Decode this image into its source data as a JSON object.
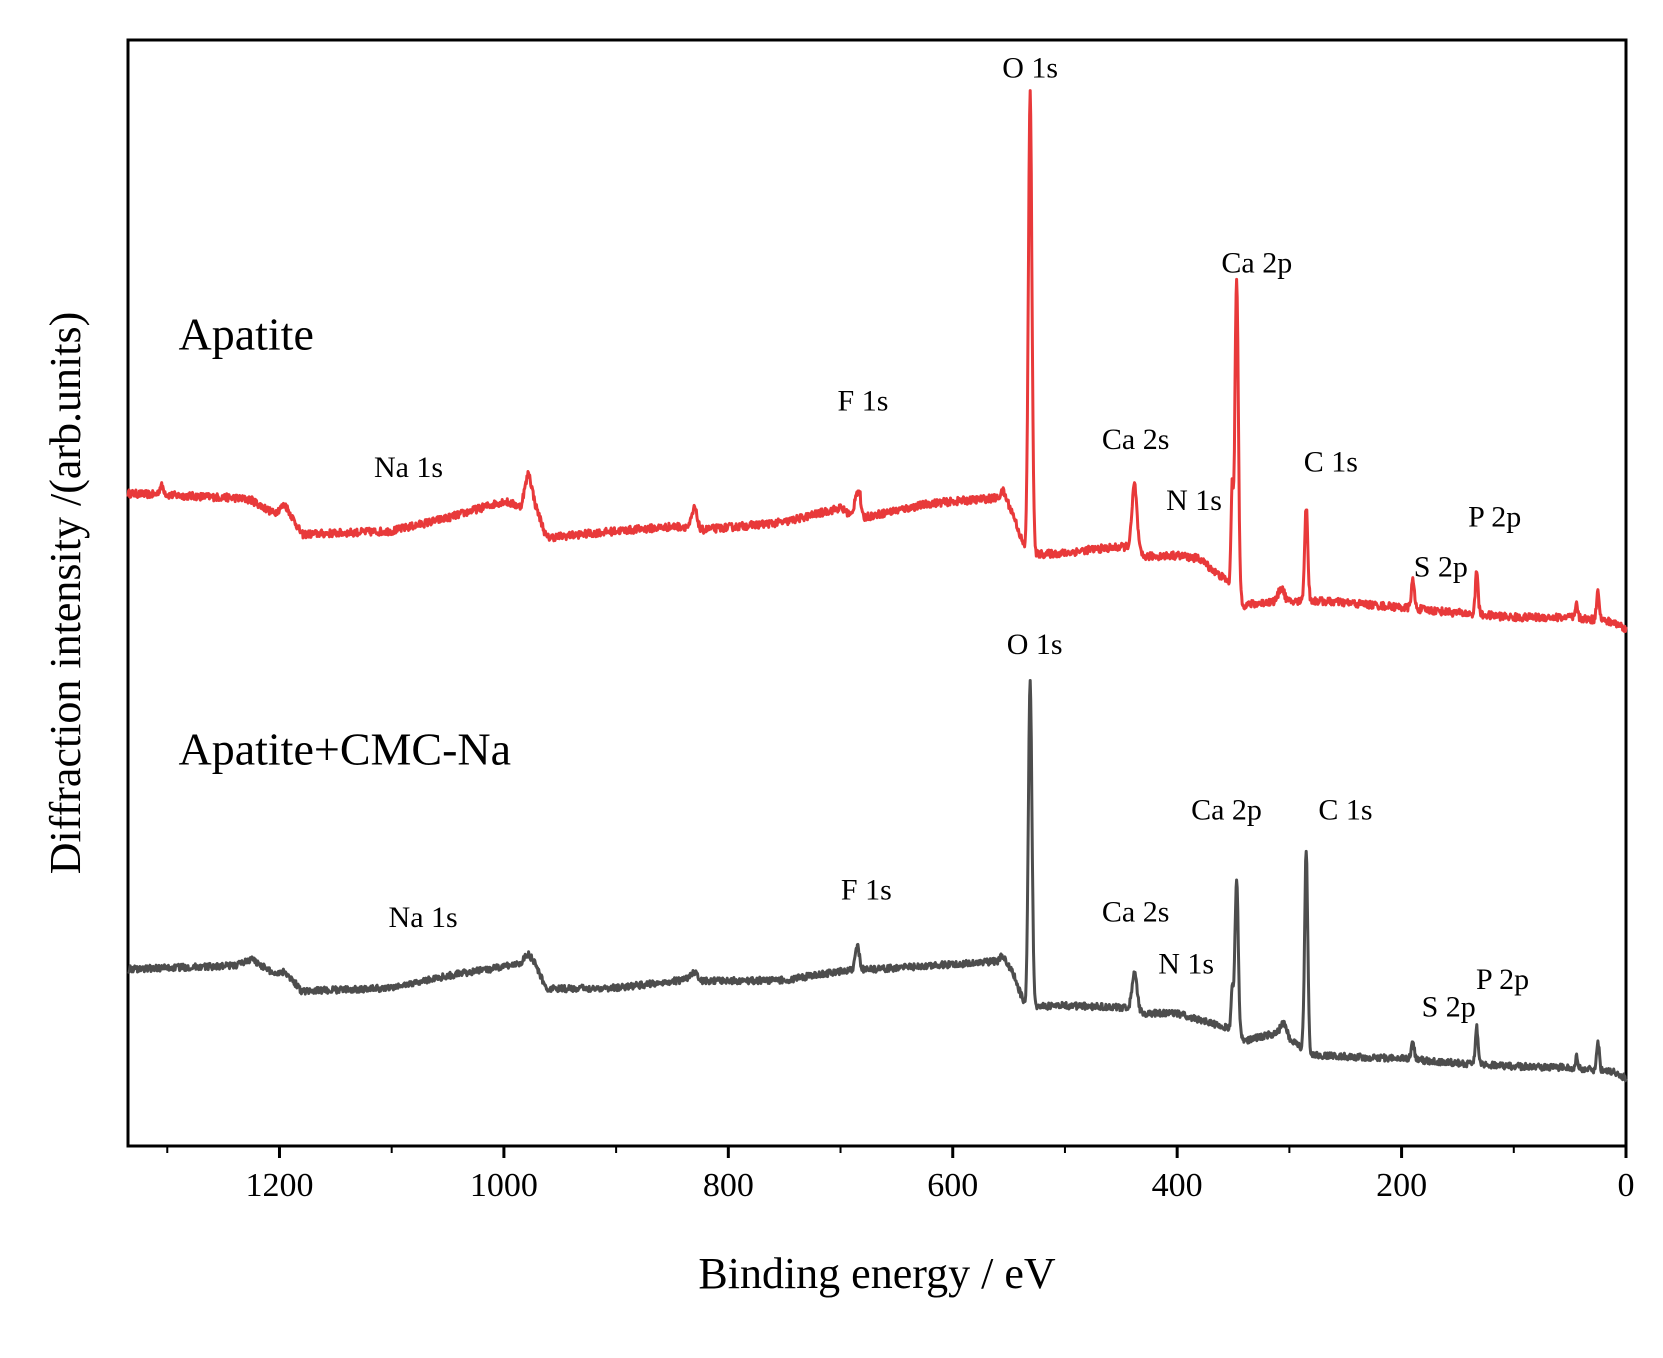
{
  "chart_data": {
    "type": "line",
    "xlabel": "Binding energy / eV",
    "ylabel": "Diffraction intensity /(arb.units)",
    "xlim": [
      1335,
      0
    ],
    "ylim": [
      0,
      100
    ],
    "x_ticks": [
      1200,
      1000,
      800,
      600,
      400,
      200,
      0
    ],
    "x_tick_labels": [
      "1200",
      "1000",
      "800",
      "600",
      "400",
      "200",
      "0"
    ],
    "grid": false,
    "y_ticks_shown": false,
    "series": [
      {
        "name": "Apatite",
        "color": "#e8393a",
        "label_text": "Apatite",
        "baseline": [
          [
            1335,
            59
          ],
          [
            1240,
            58.6
          ],
          [
            1225,
            58.4
          ],
          [
            1205,
            57.2
          ],
          [
            1195,
            58
          ],
          [
            1180,
            55.3
          ],
          [
            1100,
            55.6
          ],
          [
            1050,
            56.8
          ],
          [
            1000,
            58.3
          ],
          [
            985,
            57.8
          ],
          [
            978,
            61
          ],
          [
            972,
            58
          ],
          [
            962,
            55
          ],
          [
            900,
            55.6
          ],
          [
            850,
            56
          ],
          [
            835,
            56
          ],
          [
            830,
            57.8
          ],
          [
            825,
            55.7
          ],
          [
            750,
            56.4
          ],
          [
            700,
            57.7
          ],
          [
            686,
            56.7
          ],
          [
            620,
            58.1
          ],
          [
            560,
            58.6
          ],
          [
            555,
            59.2
          ],
          [
            545,
            56.8
          ],
          [
            535,
            53.7
          ],
          [
            525,
            53.5
          ],
          [
            500,
            53.6
          ],
          [
            480,
            53.9
          ],
          [
            445,
            54.2
          ],
          [
            430,
            53.3
          ],
          [
            400,
            53.4
          ],
          [
            380,
            53.1
          ],
          [
            365,
            51.8
          ],
          [
            356,
            51.2
          ],
          [
            340,
            48.9
          ],
          [
            310,
            49.3
          ],
          [
            300,
            49.2
          ],
          [
            280,
            49.3
          ],
          [
            260,
            49.2
          ],
          [
            200,
            48.7
          ],
          [
            150,
            48.2
          ],
          [
            100,
            47.8
          ],
          [
            50,
            47.8
          ],
          [
            20,
            47.5
          ],
          [
            10,
            47.3
          ],
          [
            0,
            46.8
          ]
        ],
        "peaks": [
          {
            "pos": 531,
            "height": 41.5,
            "width": 1.6
          },
          {
            "pos": 347,
            "height": 28.5,
            "width": 1.5
          },
          {
            "pos": 351,
            "height": 9,
            "width": 1
          },
          {
            "pos": 438,
            "height": 6,
            "width": 2.2
          },
          {
            "pos": 285,
            "height": 8.5,
            "width": 1.4
          },
          {
            "pos": 133,
            "height": 4,
            "width": 1.2
          },
          {
            "pos": 190,
            "height": 2.5,
            "width": 1.4
          },
          {
            "pos": 25,
            "height": 2.8,
            "width": 1.2
          },
          {
            "pos": 44,
            "height": 1.2,
            "width": 1
          },
          {
            "pos": 686,
            "height": 2.3,
            "width": 1.6
          },
          {
            "pos": 683,
            "height": 2,
            "width": 1.2
          },
          {
            "pos": 307,
            "height": 1.2,
            "width": 2.5
          },
          {
            "pos": 1305,
            "height": 0.8,
            "width": 2
          }
        ],
        "noise": 0.35,
        "annotations": [
          {
            "text": "O 1s",
            "x": 531,
            "y": 96.6
          },
          {
            "text": "Ca 2p",
            "x": 329,
            "y": 79
          },
          {
            "text": "F 1s",
            "x": 680,
            "y": 66.5
          },
          {
            "text": "Ca 2s",
            "x": 437,
            "y": 63
          },
          {
            "text": "C 1s",
            "x": 263,
            "y": 61
          },
          {
            "text": "N 1s",
            "x": 385,
            "y": 57.5
          },
          {
            "text": "Na 1s",
            "x": 1085,
            "y": 60.5
          },
          {
            "text": "P 2p",
            "x": 117,
            "y": 56
          },
          {
            "text": "S 2p",
            "x": 165,
            "y": 51.5
          }
        ]
      },
      {
        "name": "Apatite+CMC-Na",
        "color": "#4d4d4d",
        "label_text": "Apatite+CMC-Na",
        "baseline": [
          [
            1335,
            16
          ],
          [
            1240,
            16.3
          ],
          [
            1225,
            16.9
          ],
          [
            1205,
            15.6
          ],
          [
            1195,
            15.8
          ],
          [
            1180,
            14
          ],
          [
            1100,
            14.3
          ],
          [
            1050,
            15.4
          ],
          [
            1000,
            16.2
          ],
          [
            985,
            16.6
          ],
          [
            978,
            17.4
          ],
          [
            972,
            16.4
          ],
          [
            962,
            14.2
          ],
          [
            900,
            14.3
          ],
          [
            840,
            15
          ],
          [
            830,
            15.7
          ],
          [
            825,
            14.9
          ],
          [
            750,
            15
          ],
          [
            700,
            15.8
          ],
          [
            620,
            16.3
          ],
          [
            560,
            16.7
          ],
          [
            555,
            17.3
          ],
          [
            545,
            15.3
          ],
          [
            535,
            12.5
          ],
          [
            525,
            12.6
          ],
          [
            500,
            12.7
          ],
          [
            445,
            12.5
          ],
          [
            430,
            12
          ],
          [
            400,
            12
          ],
          [
            380,
            11.4
          ],
          [
            356,
            10.7
          ],
          [
            340,
            9.5
          ],
          [
            320,
            10
          ],
          [
            308,
            10.3
          ],
          [
            295,
            9.3
          ],
          [
            280,
            8.2
          ],
          [
            200,
            7.9
          ],
          [
            150,
            7.5
          ],
          [
            100,
            7.2
          ],
          [
            50,
            7.1
          ],
          [
            30,
            6.9
          ],
          [
            10,
            6.7
          ],
          [
            0,
            6.1
          ]
        ],
        "peaks": [
          {
            "pos": 531,
            "height": 29.5,
            "width": 1.6
          },
          {
            "pos": 347,
            "height": 14,
            "width": 1.5
          },
          {
            "pos": 351,
            "height": 4,
            "width": 1
          },
          {
            "pos": 285,
            "height": 18,
            "width": 1.4
          },
          {
            "pos": 438,
            "height": 3.5,
            "width": 2.2
          },
          {
            "pos": 133,
            "height": 3.3,
            "width": 1.2
          },
          {
            "pos": 190,
            "height": 1.5,
            "width": 1.4
          },
          {
            "pos": 25,
            "height": 2.6,
            "width": 1.2
          },
          {
            "pos": 44,
            "height": 1,
            "width": 1
          },
          {
            "pos": 685,
            "height": 2.2,
            "width": 1.8
          },
          {
            "pos": 305,
            "height": 1,
            "width": 2.5
          }
        ],
        "noise": 0.3,
        "annotations": [
          {
            "text": "O 1s",
            "x": 527,
            "y": 44.5
          },
          {
            "text": "Ca 2p",
            "x": 356,
            "y": 29.5
          },
          {
            "text": "C 1s",
            "x": 250,
            "y": 29.5
          },
          {
            "text": "F 1s",
            "x": 677,
            "y": 22.3
          },
          {
            "text": "Ca 2s",
            "x": 437,
            "y": 20.3
          },
          {
            "text": "N 1s",
            "x": 392,
            "y": 15.6
          },
          {
            "text": "Na 1s",
            "x": 1072,
            "y": 19.8
          },
          {
            "text": "P 2p",
            "x": 110,
            "y": 14.2
          },
          {
            "text": "S 2p",
            "x": 158,
            "y": 11.7
          }
        ]
      }
    ]
  }
}
